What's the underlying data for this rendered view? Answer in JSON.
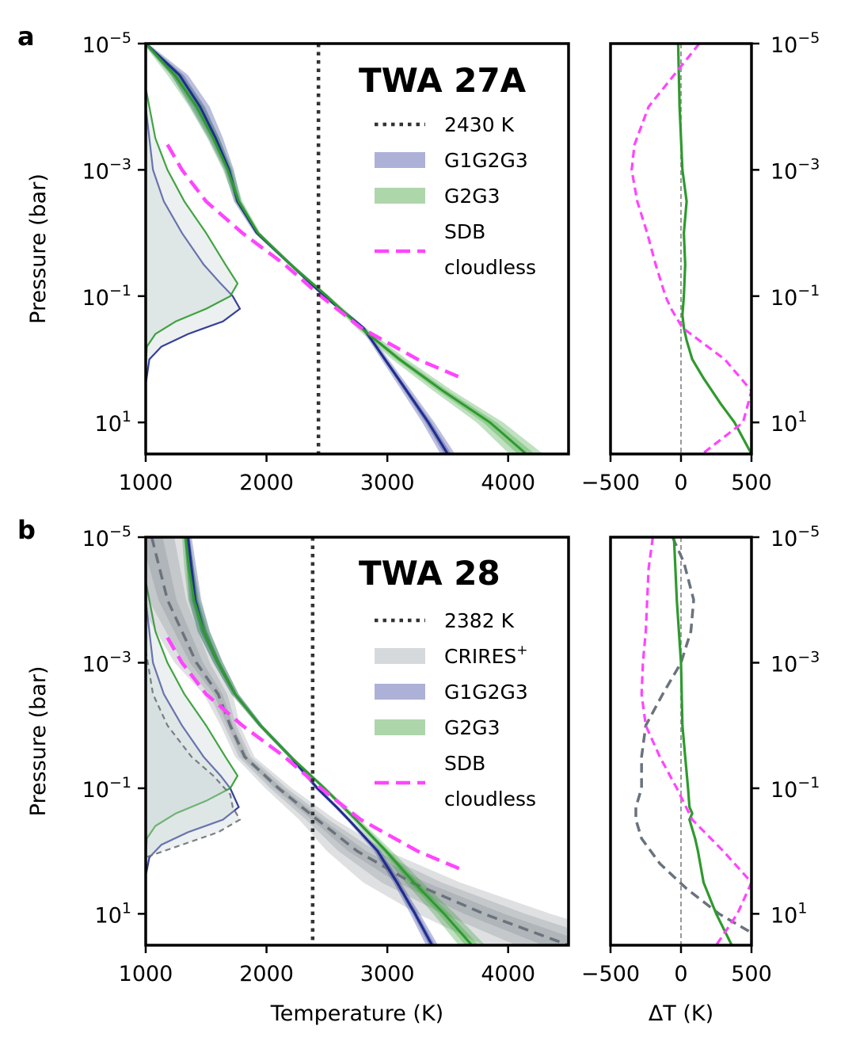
{
  "chart_data": [
    {
      "panel_label": "a",
      "type": "line",
      "title": "TWA 27A",
      "xlabel": "",
      "ylabel": "Pressure (bar)",
      "xlim": [
        1000,
        4500
      ],
      "ylim_log10": [
        -5,
        1.5
      ],
      "xticks": [
        1000,
        2000,
        3000,
        4000
      ],
      "xtick_labels": [
        "1000",
        "2000",
        "3000",
        "4000"
      ],
      "yticks_log10": [
        -5,
        -3,
        -1,
        1
      ],
      "ytick_labels": [
        {
          "base": "10",
          "exp": "−5"
        },
        {
          "base": "10",
          "exp": "−3"
        },
        {
          "base": "10",
          "exp": "−1"
        },
        {
          "base": "10",
          "exp": "1"
        }
      ],
      "teq": {
        "label": "2430 K",
        "value": 2430
      },
      "legend": [
        {
          "key": "teq",
          "label": "2430 K"
        },
        {
          "key": "G1G2G3",
          "label": "G1G2G3"
        },
        {
          "key": "G2G3",
          "label": "G2G3"
        },
        {
          "key": "SDB",
          "label": "SDB",
          "label2": "cloudless"
        }
      ],
      "colors": {
        "G1G2G3": "#1f2c8f",
        "G2G3": "#2e9a2e",
        "SDB": "#ff44ff",
        "CRIRES": "#6a737d",
        "teq": "#333333"
      },
      "series": [
        {
          "name": "G1G2G3",
          "logp": [
            -5,
            -4.5,
            -4,
            -3.5,
            -3,
            -2.5,
            -2,
            -1.5,
            -1,
            -0.5,
            0,
            0.5,
            1,
            1.5
          ],
          "T": [
            1000,
            1280,
            1450,
            1580,
            1690,
            1760,
            1920,
            2200,
            2480,
            2800,
            2980,
            3160,
            3340,
            3500
          ],
          "spread": [
            20,
            70,
            80,
            60,
            40,
            30,
            20,
            20,
            20,
            20,
            30,
            40,
            50,
            60
          ]
        },
        {
          "name": "G2G3",
          "logp": [
            -5,
            -4.5,
            -4,
            -3.5,
            -3,
            -2.5,
            -2,
            -1.5,
            -1,
            -0.5,
            0,
            0.5,
            1,
            1.5
          ],
          "T": [
            1000,
            1240,
            1420,
            1560,
            1680,
            1770,
            1930,
            2200,
            2500,
            2780,
            3100,
            3460,
            3850,
            4150
          ],
          "spread": [
            20,
            60,
            60,
            50,
            40,
            30,
            20,
            20,
            20,
            40,
            60,
            80,
            110,
            140
          ]
        },
        {
          "name": "SDB",
          "logp": [
            -3.4,
            -3,
            -2.5,
            -2,
            -1.5,
            -1,
            -0.5,
            0,
            0.3
          ],
          "T": [
            1180,
            1300,
            1500,
            1800,
            2150,
            2450,
            2780,
            3250,
            3620
          ]
        }
      ],
      "contribution": [
        {
          "name": "G1G2G3",
          "logp": [
            -4,
            -3,
            -2.5,
            -2,
            -1.5,
            -1.2,
            -1,
            -0.8,
            -0.6,
            -0.4,
            -0.2,
            0,
            0.4
          ],
          "T": [
            1000,
            1060,
            1150,
            1300,
            1480,
            1620,
            1720,
            1780,
            1640,
            1350,
            1130,
            1030,
            1000
          ]
        },
        {
          "name": "G2G3",
          "logp": [
            -4.3,
            -3.5,
            -3,
            -2.5,
            -2,
            -1.5,
            -1.2,
            -1,
            -0.8,
            -0.6,
            -0.4,
            -0.2,
            0.1
          ],
          "T": [
            1000,
            1080,
            1180,
            1320,
            1500,
            1660,
            1760,
            1700,
            1500,
            1250,
            1080,
            1010,
            1000
          ]
        }
      ],
      "dt_panel": {
        "xlim": [
          -500,
          500
        ],
        "xticks": [
          -500,
          0,
          500
        ],
        "xtick_labels": [
          "−500",
          "0",
          "500"
        ],
        "xlabel": "",
        "series": [
          {
            "name": "G2G3",
            "logp": [
              -5,
              -4,
              -3,
              -2.5,
              -2,
              -1.5,
              -1,
              -0.7,
              -0.5,
              -0.3,
              0,
              0.3,
              0.7,
              1,
              1.5
            ],
            "dT": [
              -20,
              -10,
              10,
              40,
              20,
              30,
              20,
              10,
              20,
              40,
              80,
              160,
              280,
              380,
              500
            ]
          },
          {
            "name": "SDB",
            "logp": [
              -5,
              -4.5,
              -4,
              -3.4,
              -3,
              -2.5,
              -2,
              -1.5,
              -1,
              -0.8,
              -0.5,
              -0.3,
              0,
              0.5,
              1,
              1.5
            ],
            "dT": [
              130,
              -50,
              -230,
              -330,
              -350,
              -310,
              -240,
              -180,
              -110,
              -70,
              10,
              130,
              310,
              500,
              440,
              150
            ]
          }
        ]
      }
    },
    {
      "panel_label": "b",
      "type": "line",
      "title": "TWA 28",
      "xlabel": "Temperature (K)",
      "ylabel": "Pressure (bar)",
      "xlim": [
        1000,
        4500
      ],
      "ylim_log10": [
        -5,
        1.5
      ],
      "xticks": [
        1000,
        2000,
        3000,
        4000
      ],
      "xtick_labels": [
        "1000",
        "2000",
        "3000",
        "4000"
      ],
      "yticks_log10": [
        -5,
        -3,
        -1,
        1
      ],
      "ytick_labels": [
        {
          "base": "10",
          "exp": "−5"
        },
        {
          "base": "10",
          "exp": "−3"
        },
        {
          "base": "10",
          "exp": "−1"
        },
        {
          "base": "10",
          "exp": "1"
        }
      ],
      "teq": {
        "label": "2382 K",
        "value": 2382
      },
      "legend": [
        {
          "key": "teq",
          "label": "2382 K"
        },
        {
          "key": "CRIRES",
          "label": "CRIRES",
          "sup": "+"
        },
        {
          "key": "G1G2G3",
          "label": "G1G2G3"
        },
        {
          "key": "G2G3",
          "label": "G2G3"
        },
        {
          "key": "SDB",
          "label": "SDB",
          "label2": "cloudless"
        }
      ],
      "colors": {
        "G1G2G3": "#1f2c8f",
        "G2G3": "#2e9a2e",
        "SDB": "#ff44ff",
        "CRIRES": "#6a737d",
        "teq": "#333333"
      },
      "series": [
        {
          "name": "CRIRES+",
          "logp": [
            -5,
            -4,
            -3,
            -2.5,
            -2,
            -1.5,
            -1,
            -0.5,
            0,
            0.5,
            1,
            1.5
          ],
          "T": [
            1050,
            1180,
            1420,
            1600,
            1700,
            1820,
            2100,
            2420,
            2750,
            3200,
            3800,
            4500
          ],
          "spread": [
            300,
            250,
            180,
            120,
            80,
            80,
            110,
            150,
            250,
            400,
            550,
            700
          ]
        },
        {
          "name": "G1G2G3",
          "logp": [
            -5,
            -4.5,
            -4,
            -3.5,
            -3,
            -2.5,
            -2,
            -1.5,
            -1,
            -0.7,
            -0.5,
            0,
            0.5,
            1,
            1.5
          ],
          "T": [
            1350,
            1380,
            1410,
            1480,
            1600,
            1740,
            1950,
            2200,
            2420,
            2580,
            2680,
            2920,
            3080,
            3230,
            3370
          ],
          "spread": [
            30,
            40,
            50,
            50,
            40,
            30,
            20,
            20,
            20,
            20,
            20,
            30,
            30,
            40,
            50
          ]
        },
        {
          "name": "G2G3",
          "logp": [
            -5,
            -4.5,
            -4,
            -3.5,
            -3,
            -2.5,
            -2,
            -1.5,
            -1,
            -0.5,
            0,
            0.5,
            1,
            1.5
          ],
          "T": [
            1330,
            1360,
            1400,
            1480,
            1600,
            1740,
            1950,
            2200,
            2480,
            2740,
            2990,
            3220,
            3470,
            3700
          ],
          "spread": [
            30,
            40,
            50,
            50,
            40,
            30,
            20,
            20,
            20,
            30,
            50,
            70,
            90,
            110
          ]
        },
        {
          "name": "SDB",
          "logp": [
            -3.4,
            -3,
            -2.5,
            -2,
            -1.5,
            -1,
            -0.5,
            0,
            0.3
          ],
          "T": [
            1180,
            1300,
            1500,
            1800,
            2150,
            2450,
            2780,
            3250,
            3620
          ]
        }
      ],
      "contribution": [
        {
          "name": "G1G2G3",
          "logp": [
            -4,
            -3,
            -2.5,
            -2,
            -1.5,
            -1.2,
            -1,
            -0.7,
            -0.5,
            -0.3,
            -0.1,
            0.1,
            0.4
          ],
          "T": [
            1000,
            1060,
            1150,
            1300,
            1480,
            1620,
            1700,
            1770,
            1640,
            1350,
            1130,
            1030,
            1000
          ]
        },
        {
          "name": "G2G3",
          "logp": [
            -4.3,
            -3.5,
            -3,
            -2.5,
            -2,
            -1.5,
            -1.2,
            -1,
            -0.8,
            -0.6,
            -0.4,
            -0.2,
            0.1
          ],
          "T": [
            1000,
            1080,
            1180,
            1320,
            1500,
            1660,
            1760,
            1700,
            1500,
            1250,
            1080,
            1010,
            1000
          ]
        },
        {
          "name": "CRIRES+",
          "logp": [
            -3.2,
            -2.5,
            -2,
            -1.5,
            -1.2,
            -0.9,
            -0.7,
            -0.5,
            -0.3,
            -0.1,
            0.1
          ],
          "T": [
            1000,
            1060,
            1180,
            1380,
            1560,
            1700,
            1720,
            1780,
            1600,
            1300,
            1000
          ]
        }
      ],
      "dt_panel": {
        "xlim": [
          -500,
          500
        ],
        "xticks": [
          -500,
          0,
          500
        ],
        "xtick_labels": [
          "−500",
          "0",
          "500"
        ],
        "xlabel": "ΔT (K)",
        "series": [
          {
            "name": "CRIRES+",
            "logp": [
              -5,
              -4.6,
              -4,
              -3.5,
              -3,
              -2.5,
              -2,
              -1.5,
              -1,
              -0.7,
              -0.5,
              -0.2,
              0.2,
              0.6,
              1,
              1.3
            ],
            "dT": [
              -60,
              20,
              90,
              70,
              0,
              -130,
              -250,
              -280,
              -280,
              -320,
              -320,
              -280,
              -150,
              40,
              270,
              500
            ]
          },
          {
            "name": "G2G3",
            "logp": [
              -5,
              -4,
              -3,
              -2,
              -1.5,
              -1,
              -0.7,
              -0.6,
              -0.5,
              -0.2,
              0,
              0.5,
              1,
              1.5
            ],
            "dT": [
              -50,
              -30,
              0,
              10,
              30,
              50,
              60,
              80,
              60,
              100,
              120,
              160,
              250,
              360
            ]
          },
          {
            "name": "SDB",
            "logp": [
              -5,
              -4.5,
              -4,
              -3.5,
              -3,
              -2.5,
              -2,
              -1.5,
              -1,
              -0.5,
              0,
              0.5,
              1,
              1.5
            ],
            "dT": [
              -200,
              -230,
              -240,
              -250,
              -270,
              -280,
              -250,
              -150,
              -30,
              80,
              300,
              500,
              400,
              250
            ]
          }
        ]
      }
    }
  ]
}
